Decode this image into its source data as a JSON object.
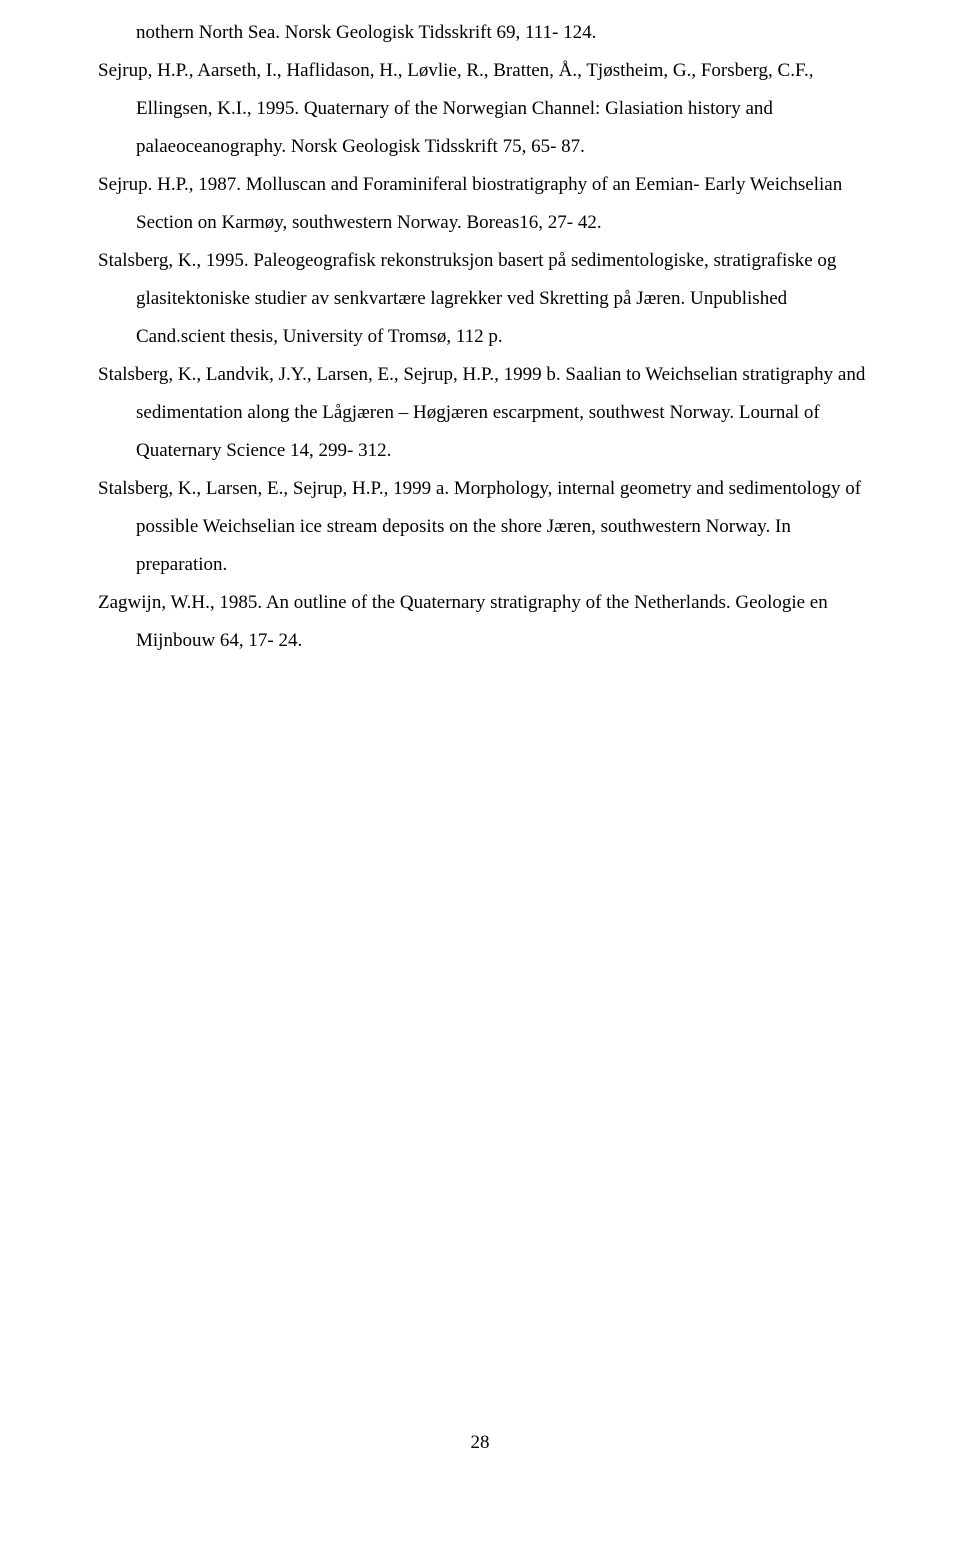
{
  "references": [
    {
      "type": "continuation",
      "text": "nothern North Sea. Norsk Geologisk Tidsskrift 69, 111- 124."
    },
    {
      "type": "reference",
      "text": "Sejrup, H.P., Aarseth, I.,  Haflidason, H., Løvlie, R., Bratten, Å., Tjøstheim, G., Forsberg, C.F., Ellingsen, K.I., 1995. Quaternary of the Norwegian Channel: Glasiation history and palaeoceanography. Norsk Geologisk Tidsskrift 75, 65- 87."
    },
    {
      "type": "reference",
      "text": "Sejrup. H.P., 1987. Molluscan and Foraminiferal biostratigraphy of an Eemian- Early Weichselian Section on Karmøy, southwestern Norway. Boreas16, 27- 42."
    },
    {
      "type": "reference",
      "text": "Stalsberg, K., 1995. Paleogeografisk rekonstruksjon basert på sedimentologiske, stratigrafiske og glasitektoniske studier av senkvartære lagrekker ved Skretting på Jæren. Unpublished Cand.scient thesis, University of Tromsø, 112 p."
    },
    {
      "type": "reference",
      "text": "Stalsberg, K., Landvik, J.Y., Larsen, E., Sejrup, H.P., 1999 b. Saalian to Weichselian stratigraphy and sedimentation along the Lågjæren – Høgjæren escarpment, southwest Norway. Lournal of Quaternary Science 14, 299- 312."
    },
    {
      "type": "reference",
      "text": "Stalsberg, K., Larsen, E., Sejrup, H.P., 1999 a. Morphology, internal geometry and sedimentology of possible Weichselian ice stream deposits on the shore Jæren, southwestern Norway. In preparation."
    },
    {
      "type": "reference",
      "text": "Zagwijn, W.H., 1985. An outline of the Quaternary stratigraphy of the Netherlands. Geologie en Mijnbouw 64, 17- 24."
    }
  ],
  "page_number": "28"
}
